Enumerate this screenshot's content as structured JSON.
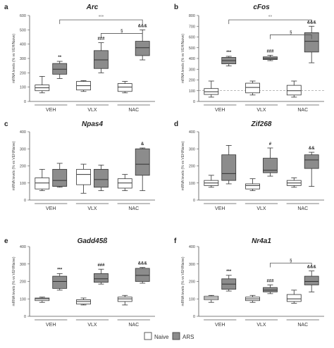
{
  "colors": {
    "naive": "#ffffff",
    "ars": "#8c8c8c",
    "stroke": "#333333",
    "bracket": "#555555"
  },
  "legend": {
    "items": [
      {
        "label": "Naive",
        "color": "#ffffff"
      },
      {
        "label": "ARS",
        "color": "#8c8c8c"
      }
    ]
  },
  "chart_data": [
    {
      "letter": "a",
      "title": "Arc",
      "type": "box",
      "ylabel": "mRNA levels (% vs VEH/Naive)",
      "ylim": [
        0,
        600
      ],
      "yticks": [
        0,
        100,
        200,
        300,
        400,
        500,
        600
      ],
      "categories": [
        "VEH",
        "VLX",
        "NAC"
      ],
      "series": [
        {
          "name": "Naive",
          "boxes": [
            {
              "min": 60,
              "q1": 75,
              "median": 95,
              "q3": 115,
              "max": 175
            },
            {
              "min": 70,
              "q1": 80,
              "median": 110,
              "q3": 140,
              "max": 145
            },
            {
              "min": 60,
              "q1": 70,
              "median": 100,
              "q3": 125,
              "max": 140
            }
          ]
        },
        {
          "name": "ARS",
          "boxes": [
            {
              "min": 160,
              "q1": 190,
              "median": 225,
              "q3": 265,
              "max": 280
            },
            {
              "min": 200,
              "q1": 230,
              "median": 290,
              "q3": 355,
              "max": 410
            },
            {
              "min": 290,
              "q1": 320,
              "median": 375,
              "q3": 420,
              "max": 500
            }
          ]
        }
      ],
      "point_labels": [
        {
          "category": 0,
          "series": "ARS",
          "text": "**"
        },
        {
          "category": 1,
          "series": "ARS",
          "text": "###"
        },
        {
          "category": 2,
          "series": "ARS",
          "text": "&&&"
        }
      ],
      "brackets": [
        {
          "from": 0,
          "to": 2,
          "y": 570,
          "text": "°°°"
        },
        {
          "from": 1,
          "to": 2,
          "y": 475,
          "text": "§"
        }
      ]
    },
    {
      "letter": "b",
      "title": "cFos",
      "type": "box",
      "ylabel": "mRNA levels (% vs VEH/Naive)",
      "ylim": [
        0,
        800
      ],
      "yticks": [
        0,
        100,
        200,
        300,
        400,
        500,
        600,
        700,
        800
      ],
      "reference_line": 100,
      "categories": [
        "VEH",
        "VLX",
        "NAC"
      ],
      "series": [
        {
          "name": "Naive",
          "boxes": [
            {
              "min": 40,
              "q1": 65,
              "median": 90,
              "q3": 120,
              "max": 190
            },
            {
              "min": 60,
              "q1": 80,
              "median": 130,
              "q3": 170,
              "max": 190
            },
            {
              "min": 40,
              "q1": 60,
              "median": 100,
              "q3": 150,
              "max": 190
            }
          ]
        },
        {
          "name": "ARS",
          "boxes": [
            {
              "min": 330,
              "q1": 350,
              "median": 380,
              "q3": 410,
              "max": 420
            },
            {
              "min": 380,
              "q1": 390,
              "median": 400,
              "q3": 415,
              "max": 430
            },
            {
              "min": 360,
              "q1": 460,
              "median": 560,
              "q3": 640,
              "max": 700
            }
          ]
        }
      ],
      "point_labels": [
        {
          "category": 0,
          "series": "ARS",
          "text": "***"
        },
        {
          "category": 1,
          "series": "ARS",
          "text": "###"
        },
        {
          "category": 2,
          "series": "ARS",
          "text": "&&&"
        }
      ],
      "brackets": [
        {
          "from": 0,
          "to": 2,
          "y": 760,
          "text": "°°"
        },
        {
          "from": 1,
          "to": 2,
          "y": 620,
          "text": "§"
        }
      ]
    },
    {
      "letter": "c",
      "title": "Npas4",
      "type": "box",
      "ylabel": "mRNA levels (% vs VEH/Naive)",
      "ylim": [
        0,
        400
      ],
      "yticks": [
        0,
        100,
        200,
        300,
        400
      ],
      "categories": [
        "VEH",
        "VLX",
        "NAC"
      ],
      "series": [
        {
          "name": "Naive",
          "boxes": [
            {
              "min": 55,
              "q1": 65,
              "median": 100,
              "q3": 130,
              "max": 180
            },
            {
              "min": 40,
              "q1": 90,
              "median": 150,
              "q3": 180,
              "max": 210
            },
            {
              "min": 55,
              "q1": 70,
              "median": 100,
              "q3": 125,
              "max": 150
            }
          ]
        },
        {
          "name": "ARS",
          "boxes": [
            {
              "min": 75,
              "q1": 80,
              "median": 115,
              "q3": 180,
              "max": 215
            },
            {
              "min": 55,
              "q1": 75,
              "median": 120,
              "q3": 180,
              "max": 205
            },
            {
              "min": 55,
              "q1": 145,
              "median": 210,
              "q3": 300,
              "max": 305
            }
          ]
        }
      ],
      "point_labels": [
        {
          "category": 2,
          "series": "ARS",
          "text": "&"
        }
      ],
      "brackets": []
    },
    {
      "letter": "d",
      "title": "Zif268",
      "type": "box",
      "ylabel": "mRNA levels (% vs VEH/Naive)",
      "ylim": [
        0,
        400
      ],
      "yticks": [
        0,
        100,
        200,
        300,
        400
      ],
      "categories": [
        "VEH",
        "VLX",
        "NAC"
      ],
      "series": [
        {
          "name": "Naive",
          "boxes": [
            {
              "min": 75,
              "q1": 85,
              "median": 100,
              "q3": 115,
              "max": 145
            },
            {
              "min": 55,
              "q1": 65,
              "median": 85,
              "q3": 95,
              "max": 125
            },
            {
              "min": 75,
              "q1": 85,
              "median": 100,
              "q3": 115,
              "max": 130
            }
          ]
        },
        {
          "name": "ARS",
          "boxes": [
            {
              "min": 95,
              "q1": 115,
              "median": 155,
              "q3": 265,
              "max": 320
            },
            {
              "min": 140,
              "q1": 160,
              "median": 175,
              "q3": 245,
              "max": 305
            },
            {
              "min": 80,
              "q1": 185,
              "median": 235,
              "q3": 265,
              "max": 280
            }
          ]
        }
      ],
      "point_labels": [
        {
          "category": 1,
          "series": "ARS",
          "text": "#"
        },
        {
          "category": 2,
          "series": "ARS",
          "text": "&&"
        }
      ],
      "brackets": []
    },
    {
      "letter": "e",
      "title": "Gadd45ß",
      "type": "box",
      "ylabel": "mRNA levels (% vs VEH/Naive)",
      "ylim": [
        0,
        400
      ],
      "yticks": [
        0,
        100,
        200,
        300,
        400
      ],
      "categories": [
        "VEH",
        "VLX",
        "NAC"
      ],
      "series": [
        {
          "name": "Naive",
          "boxes": [
            {
              "min": 80,
              "q1": 90,
              "median": 100,
              "q3": 105,
              "max": 110
            },
            {
              "min": 65,
              "q1": 70,
              "median": 85,
              "q3": 95,
              "max": 105
            },
            {
              "min": 65,
              "q1": 85,
              "median": 100,
              "q3": 110,
              "max": 120
            }
          ]
        },
        {
          "name": "ARS",
          "boxes": [
            {
              "min": 150,
              "q1": 160,
              "median": 200,
              "q3": 230,
              "max": 245
            },
            {
              "min": 185,
              "q1": 195,
              "median": 215,
              "q3": 245,
              "max": 270
            },
            {
              "min": 190,
              "q1": 200,
              "median": 235,
              "q3": 275,
              "max": 280
            }
          ]
        }
      ],
      "point_labels": [
        {
          "category": 0,
          "series": "ARS",
          "text": "***"
        },
        {
          "category": 1,
          "series": "ARS",
          "text": "###"
        },
        {
          "category": 2,
          "series": "ARS",
          "text": "&&&"
        }
      ],
      "brackets": []
    },
    {
      "letter": "f",
      "title": "Nr4a1",
      "type": "box",
      "ylabel": "mRNA levels (% vs VEH/Naive)",
      "ylim": [
        0,
        400
      ],
      "yticks": [
        0,
        100,
        200,
        300,
        400
      ],
      "categories": [
        "VEH",
        "VLX",
        "NAC"
      ],
      "series": [
        {
          "name": "Naive",
          "boxes": [
            {
              "min": 80,
              "q1": 95,
              "median": 105,
              "q3": 115,
              "max": 120
            },
            {
              "min": 80,
              "q1": 90,
              "median": 100,
              "q3": 110,
              "max": 120
            },
            {
              "min": 75,
              "q1": 85,
              "median": 100,
              "q3": 125,
              "max": 150
            }
          ]
        },
        {
          "name": "ARS",
          "boxes": [
            {
              "min": 145,
              "q1": 155,
              "median": 185,
              "q3": 215,
              "max": 235
            },
            {
              "min": 130,
              "q1": 140,
              "median": 150,
              "q3": 165,
              "max": 180
            },
            {
              "min": 140,
              "q1": 180,
              "median": 200,
              "q3": 230,
              "max": 260
            }
          ]
        }
      ],
      "point_labels": [
        {
          "category": 0,
          "series": "ARS",
          "text": "***"
        },
        {
          "category": 1,
          "series": "ARS",
          "text": "###"
        },
        {
          "category": 2,
          "series": "ARS",
          "text": "&&&"
        }
      ],
      "brackets": [
        {
          "from": 1,
          "to": 2,
          "y": 305,
          "text": "§"
        }
      ]
    }
  ]
}
